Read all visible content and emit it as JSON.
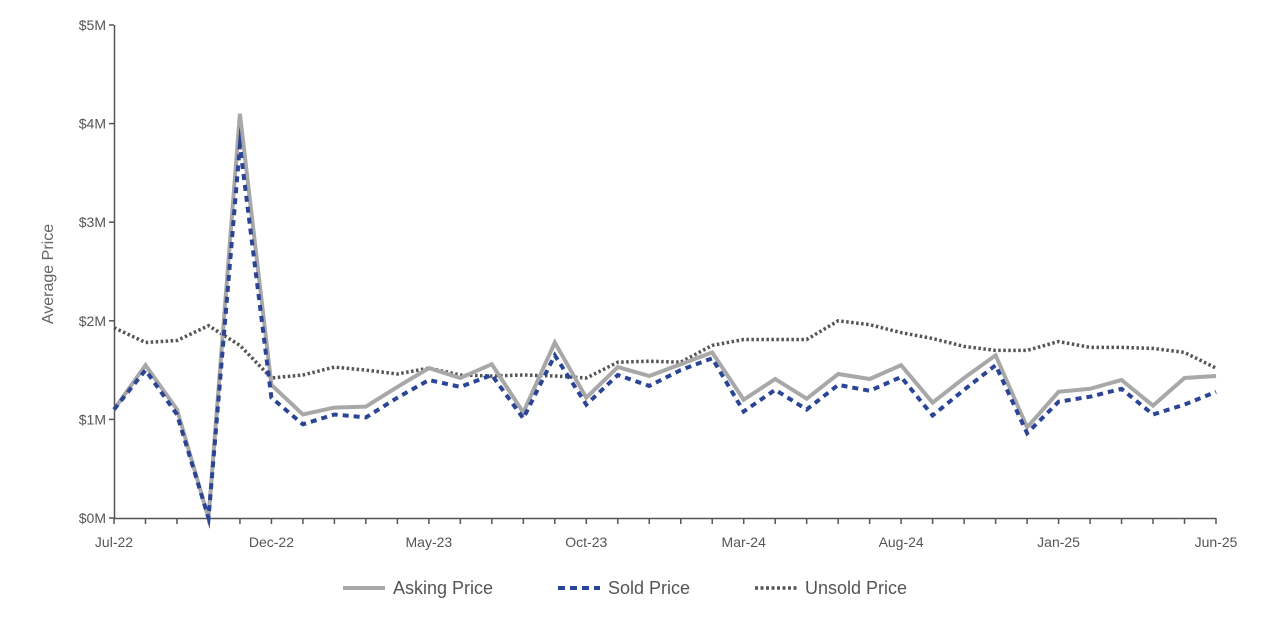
{
  "chart_data": {
    "type": "line",
    "title": "",
    "xlabel": "",
    "ylabel": "Average Price",
    "x": [
      "Jul-22",
      "Aug-22",
      "Sep-22",
      "Oct-22",
      "Nov-22",
      "Dec-22",
      "Jan-23",
      "Feb-23",
      "Mar-23",
      "Apr-23",
      "May-23",
      "Jun-23",
      "Jul-23",
      "Aug-23",
      "Sep-23",
      "Oct-23",
      "Nov-23",
      "Dec-23",
      "Jan-24",
      "Feb-24",
      "Mar-24",
      "Apr-24",
      "May-24",
      "Jun-24",
      "Jul-24",
      "Aug-24",
      "Sep-24",
      "Oct-24",
      "Nov-24",
      "Dec-24",
      "Jan-25",
      "Feb-25",
      "Mar-25",
      "Apr-25",
      "May-25",
      "Jun-25"
    ],
    "x_tick_labels": [
      "Jul-22",
      "Dec-22",
      "May-23",
      "Oct-23",
      "Mar-24",
      "Aug-24",
      "Jan-25",
      "Jun-25"
    ],
    "y_tick_labels": [
      "$0M",
      "$1M",
      "$2M",
      "$3M",
      "$4M",
      "$5M"
    ],
    "ylim": [
      0,
      5000000
    ],
    "grid": false,
    "legend_position": "bottom",
    "series": [
      {
        "name": "Asking Price",
        "color": "#a8a8a8",
        "style": "solid",
        "values": [
          1100000,
          1550000,
          1100000,
          0,
          4100000,
          1350000,
          1050000,
          1120000,
          1130000,
          1330000,
          1520000,
          1420000,
          1560000,
          1070000,
          1780000,
          1220000,
          1530000,
          1440000,
          1560000,
          1680000,
          1200000,
          1410000,
          1210000,
          1460000,
          1410000,
          1550000,
          1170000,
          1420000,
          1650000,
          920000,
          1280000,
          1310000,
          1400000,
          1140000,
          1420000,
          1440000
        ]
      },
      {
        "name": "Sold Price",
        "color": "#2a4496",
        "style": "dashed",
        "values": [
          1100000,
          1500000,
          1050000,
          0,
          3780000,
          1220000,
          950000,
          1050000,
          1020000,
          1220000,
          1400000,
          1330000,
          1450000,
          1010000,
          1650000,
          1150000,
          1450000,
          1340000,
          1500000,
          1620000,
          1080000,
          1300000,
          1100000,
          1350000,
          1290000,
          1430000,
          1040000,
          1300000,
          1550000,
          860000,
          1180000,
          1230000,
          1310000,
          1050000,
          1150000,
          1280000
        ]
      },
      {
        "name": "Unsold Price",
        "color": "#555555",
        "style": "dotted",
        "values": [
          1930000,
          1780000,
          1800000,
          1950000,
          1750000,
          1420000,
          1450000,
          1530000,
          1500000,
          1460000,
          1520000,
          1450000,
          1440000,
          1450000,
          1440000,
          1420000,
          1580000,
          1590000,
          1580000,
          1750000,
          1810000,
          1810000,
          1810000,
          2000000,
          1960000,
          1880000,
          1820000,
          1740000,
          1700000,
          1700000,
          1790000,
          1730000,
          1730000,
          1720000,
          1680000,
          1520000
        ]
      }
    ]
  }
}
